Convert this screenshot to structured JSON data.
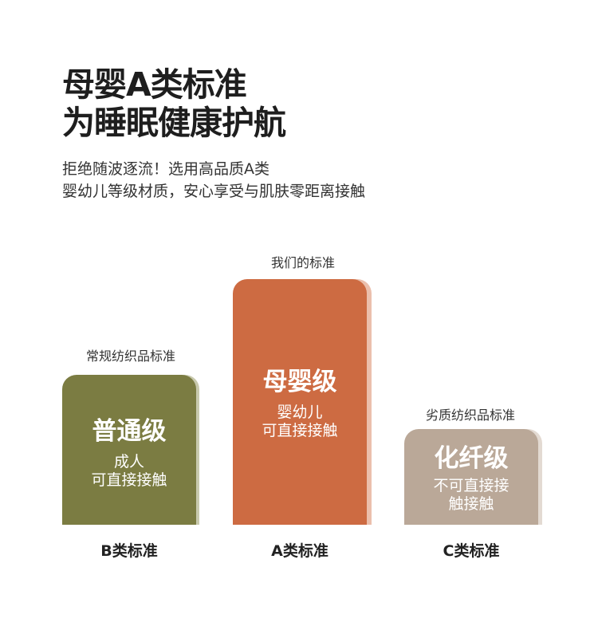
{
  "title": {
    "line1": "母婴A类标准",
    "line2": "为睡眠健康护航"
  },
  "subtitle": {
    "line1": "拒绝随波逐流！选用高品质A类",
    "line2": "婴幼儿等级材质，安心享受与肌肤零距离接触"
  },
  "bars": [
    {
      "top_label": "常规纺织品标准",
      "level": "普通级",
      "desc1": "成人",
      "desc2": "可直接接触",
      "bottom_label": "B类标准",
      "color": "#7b7c42",
      "shadow": "#c8c9ad"
    },
    {
      "top_label": "我们的标准",
      "level": "母婴级",
      "desc1": "婴幼儿",
      "desc2": "可直接接触",
      "bottom_label": "A类标准",
      "color": "#cd6b42",
      "shadow": "#ebbfac"
    },
    {
      "top_label": "劣质纺织品标准",
      "level": "化纤级",
      "desc1": "不可直接接",
      "desc2": "触接触",
      "bottom_label": "C类标准",
      "color": "#baa898",
      "shadow": "#e3dad2"
    }
  ]
}
